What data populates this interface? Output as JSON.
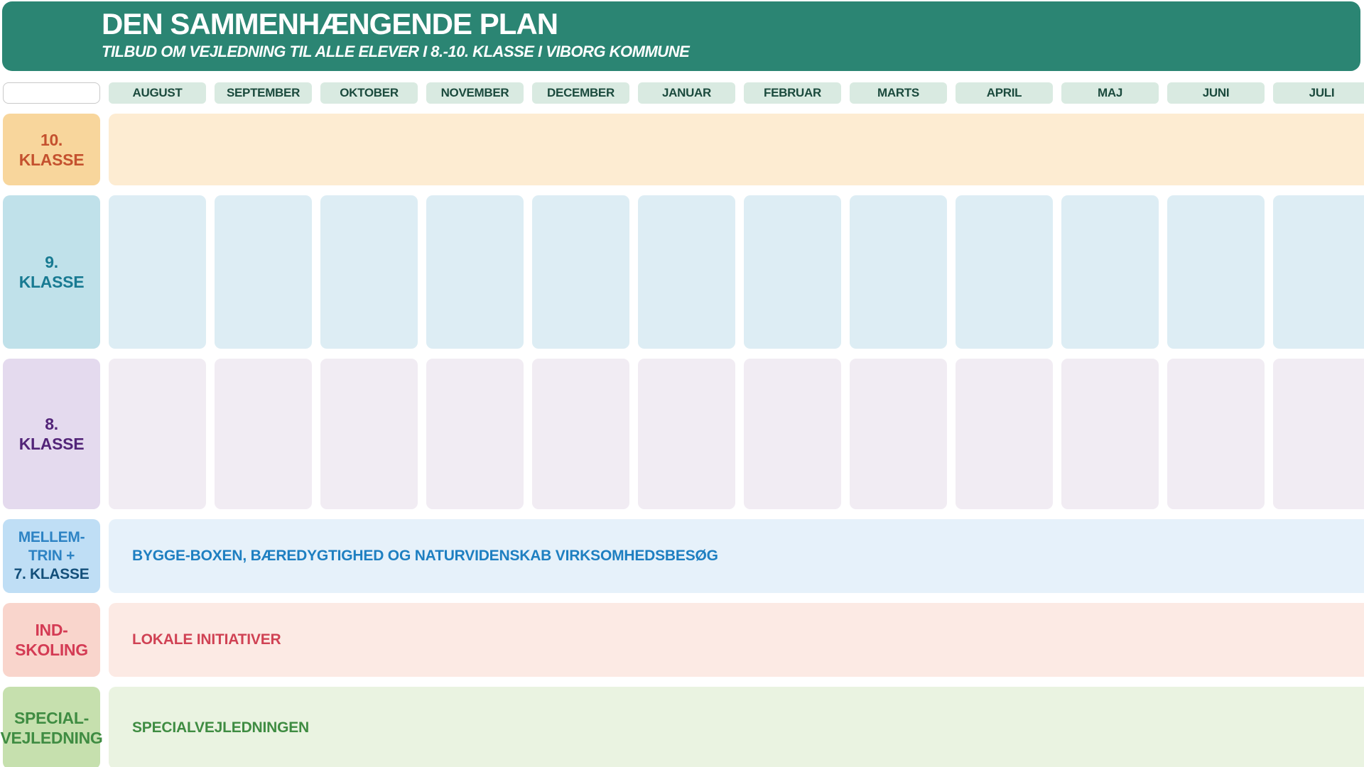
{
  "header": {
    "title": "DEN SAMMENHÆNGENDE PLAN",
    "subtitle": "TILBUD OM VEJLEDNING TIL ALLE ELEVER I 8.-10. KLASSE I VIBORG KOMMUNE"
  },
  "months": [
    "AUGUST",
    "SEPTEMBER",
    "OKTOBER",
    "NOVEMBER",
    "DECEMBER",
    "JANUAR",
    "FEBRUAR",
    "MARTS",
    "APRIL",
    "MAJ",
    "JUNI",
    "JULI"
  ],
  "rows": [
    {
      "id": "10-klasse",
      "label_lines": [
        "10.",
        "KLASSE"
      ],
      "type": "band",
      "band_text": "",
      "colors": {
        "label_bg": "#F8D69C",
        "label_text": "#C4512E",
        "band_bg": "#FDECD2"
      }
    },
    {
      "id": "9-klasse",
      "label_lines": [
        "9.",
        "KLASSE"
      ],
      "type": "month-cells",
      "cell_count": 12,
      "colors": {
        "label_bg": "#C0E1EA",
        "label_text": "#187A92",
        "cell_bg": "#DDEDF4"
      }
    },
    {
      "id": "8-klasse",
      "label_lines": [
        "8.",
        "KLASSE"
      ],
      "type": "month-cells",
      "cell_count": 12,
      "colors": {
        "label_bg": "#E4DAEE",
        "label_text": "#522478",
        "cell_bg": "#F1ECF3"
      }
    },
    {
      "id": "mellemtrin-7-klasse",
      "label_lines": [
        "MELLEM-",
        "TRIN +",
        "7. KLASSE"
      ],
      "type": "band",
      "band_text": "BYGGE-BOXEN, BÆREDYGTIGHED OG NATURVIDENSKAB VIRKSOMHEDSBESØG",
      "colors": {
        "label_bg": "#BFDEF5",
        "label_text_top": "#2D83C4",
        "label_text_bottom": "#134F7A",
        "band_bg": "#E6F1FA",
        "band_text": "#1E7FC1"
      }
    },
    {
      "id": "indskoling",
      "label_lines": [
        "IND-",
        "SKOLING"
      ],
      "type": "band",
      "band_text": "LOKALE INITIATIVER",
      "colors": {
        "label_bg": "#F9D5CC",
        "label_text": "#D43B54",
        "band_bg": "#FCEAE4",
        "band_text": "#D04254"
      }
    },
    {
      "id": "specialvejledning",
      "label_lines": [
        "SPECIAL-",
        "VEJLEDNING"
      ],
      "type": "band",
      "band_text": "SPECIALVEJLEDNINGEN",
      "colors": {
        "label_bg": "#C6E0AE",
        "label_text": "#3F8C42",
        "band_bg": "#EAF3E1",
        "band_text": "#3F8C42"
      }
    }
  ],
  "theme": {
    "header_bg": "#2B8573",
    "header_text": "#FFFFFF",
    "month_pill_bg": "#D9EAE1",
    "month_text": "#1B4A3D"
  }
}
